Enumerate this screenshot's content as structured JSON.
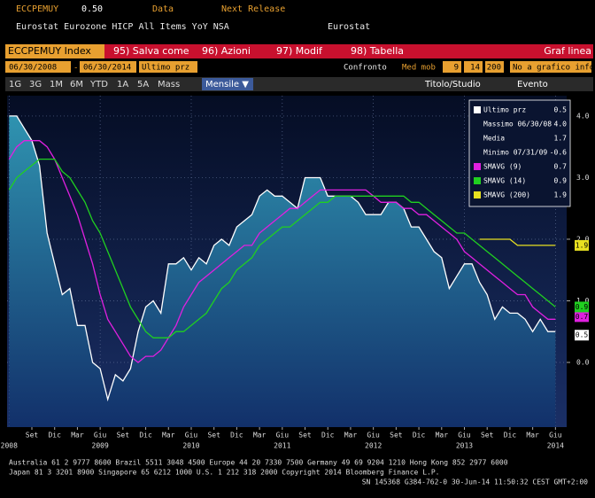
{
  "header": {
    "ticker": "ECCPEMUY",
    "last": "0.50",
    "field": "Data",
    "release": "Next Release",
    "description": "Eurostat Eurozone HICP All Items YoY NSA",
    "source": "Eurostat"
  },
  "menu": {
    "security": "ECCPEMUY Index",
    "items": [
      "95) Salva come",
      "96) Azioni",
      "97) Modif",
      "98) Tabella"
    ],
    "chart_kind": "Graf linea"
  },
  "controls": {
    "start": "06/30/2008",
    "dash": "-",
    "end": "06/30/2014",
    "field": "Ultimo prz",
    "compare": "Confronto",
    "moving": "Med mob",
    "periods": [
      "9",
      "14",
      "200"
    ],
    "info": "No a grafico info"
  },
  "ranges": {
    "buttons": [
      "1G",
      "3G",
      "1M",
      "6M",
      "YTD",
      "1A",
      "5A",
      "Mass"
    ],
    "frequency": "Mensile ▼",
    "study": "Titolo/Studio",
    "event": "Evento"
  },
  "stats": [
    {
      "label": "Massimo 06/30/08",
      "value": "4.0"
    },
    {
      "label": "Media",
      "value": "1.7"
    },
    {
      "label": "Minimo 07/31/09",
      "value": "-0.6"
    }
  ],
  "footer": [
    "Australia 61 2 9777 8600 Brazil 5511 3048 4500 Europe 44 20 7330 7500 Germany 49 69 9204 1210 Hong Kong 852 2977 6000",
    "Japan 81 3 3201 8900       Singapore 65 6212 1000       U.S. 1 212 318 2000       Copyright 2014 Bloomberg Finance L.P.",
    "SN 145368 G384-762-0 30-Jun-14 11:50:32 CEST GMT+2:00"
  ],
  "chart_data": {
    "type": "line",
    "grid": true,
    "x": [
      "2008-06",
      "2008-07",
      "2008-08",
      "2008-09",
      "2008-10",
      "2008-11",
      "2008-12",
      "2009-01",
      "2009-02",
      "2009-03",
      "2009-04",
      "2009-05",
      "2009-06",
      "2009-07",
      "2009-08",
      "2009-09",
      "2009-10",
      "2009-11",
      "2009-12",
      "2010-01",
      "2010-02",
      "2010-03",
      "2010-04",
      "2010-05",
      "2010-06",
      "2010-07",
      "2010-08",
      "2010-09",
      "2010-10",
      "2010-11",
      "2010-12",
      "2011-01",
      "2011-02",
      "2011-03",
      "2011-04",
      "2011-05",
      "2011-06",
      "2011-07",
      "2011-08",
      "2011-09",
      "2011-10",
      "2011-11",
      "2011-12",
      "2012-01",
      "2012-02",
      "2012-03",
      "2012-04",
      "2012-05",
      "2012-06",
      "2012-07",
      "2012-08",
      "2012-09",
      "2012-10",
      "2012-11",
      "2012-12",
      "2013-01",
      "2013-02",
      "2013-03",
      "2013-04",
      "2013-05",
      "2013-06",
      "2013-07",
      "2013-08",
      "2013-09",
      "2013-10",
      "2013-11",
      "2013-12",
      "2014-01",
      "2014-02",
      "2014-03",
      "2014-04",
      "2014-05",
      "2014-06"
    ],
    "series": [
      {
        "name": "Ultimo prz",
        "color": "#ffffff",
        "area": true,
        "values": [
          4.0,
          4.0,
          3.8,
          3.6,
          3.2,
          2.1,
          1.6,
          1.1,
          1.2,
          0.6,
          0.6,
          0.0,
          -0.1,
          -0.6,
          -0.2,
          -0.3,
          -0.1,
          0.5,
          0.9,
          1.0,
          0.8,
          1.6,
          1.6,
          1.7,
          1.5,
          1.7,
          1.6,
          1.9,
          2.0,
          1.9,
          2.2,
          2.3,
          2.4,
          2.7,
          2.8,
          2.7,
          2.7,
          2.6,
          2.5,
          3.0,
          3.0,
          3.0,
          2.7,
          2.7,
          2.7,
          2.7,
          2.6,
          2.4,
          2.4,
          2.4,
          2.6,
          2.6,
          2.5,
          2.2,
          2.2,
          2.0,
          1.8,
          1.7,
          1.2,
          1.4,
          1.6,
          1.6,
          1.3,
          1.1,
          0.7,
          0.9,
          0.8,
          0.8,
          0.7,
          0.5,
          0.7,
          0.5,
          0.5
        ]
      },
      {
        "name": "SMAVG (9)",
        "color": "#e020e0",
        "values": [
          3.3,
          3.5,
          3.6,
          3.6,
          3.6,
          3.5,
          3.3,
          3.0,
          2.7,
          2.4,
          2.0,
          1.6,
          1.1,
          0.7,
          0.5,
          0.3,
          0.1,
          0.0,
          0.1,
          0.1,
          0.2,
          0.4,
          0.6,
          0.9,
          1.1,
          1.3,
          1.4,
          1.5,
          1.6,
          1.7,
          1.8,
          1.9,
          1.9,
          2.1,
          2.2,
          2.3,
          2.4,
          2.5,
          2.5,
          2.6,
          2.7,
          2.8,
          2.8,
          2.8,
          2.8,
          2.8,
          2.8,
          2.8,
          2.7,
          2.6,
          2.6,
          2.6,
          2.5,
          2.5,
          2.4,
          2.4,
          2.3,
          2.2,
          2.1,
          2.0,
          1.8,
          1.7,
          1.6,
          1.5,
          1.4,
          1.3,
          1.2,
          1.1,
          1.1,
          0.9,
          0.8,
          0.7,
          0.7
        ]
      },
      {
        "name": "SMAVG (14)",
        "color": "#20d020",
        "values": [
          2.8,
          3.0,
          3.1,
          3.2,
          3.3,
          3.3,
          3.3,
          3.1,
          3.0,
          2.8,
          2.6,
          2.3,
          2.1,
          1.8,
          1.5,
          1.2,
          0.9,
          0.7,
          0.5,
          0.4,
          0.4,
          0.4,
          0.5,
          0.5,
          0.6,
          0.7,
          0.8,
          1.0,
          1.2,
          1.3,
          1.5,
          1.6,
          1.7,
          1.9,
          2.0,
          2.1,
          2.2,
          2.2,
          2.3,
          2.4,
          2.5,
          2.6,
          2.6,
          2.7,
          2.7,
          2.7,
          2.7,
          2.7,
          2.7,
          2.7,
          2.7,
          2.7,
          2.7,
          2.6,
          2.6,
          2.5,
          2.4,
          2.3,
          2.2,
          2.1,
          2.1,
          2.0,
          1.9,
          1.8,
          1.7,
          1.6,
          1.5,
          1.4,
          1.3,
          1.2,
          1.1,
          1.0,
          0.9
        ]
      },
      {
        "name": "SMAVG (200)",
        "color": "#e8e020",
        "values": [
          null,
          null,
          null,
          null,
          null,
          null,
          null,
          null,
          null,
          null,
          null,
          null,
          null,
          null,
          null,
          null,
          null,
          null,
          null,
          null,
          null,
          null,
          null,
          null,
          null,
          null,
          null,
          null,
          null,
          null,
          null,
          null,
          null,
          null,
          null,
          null,
          null,
          null,
          null,
          null,
          null,
          null,
          null,
          null,
          null,
          null,
          null,
          null,
          null,
          null,
          null,
          null,
          null,
          null,
          null,
          null,
          null,
          null,
          null,
          null,
          null,
          null,
          2.0,
          2.0,
          2.0,
          2.0,
          2.0,
          1.9,
          1.9,
          1.9,
          1.9,
          1.9,
          1.9
        ]
      }
    ],
    "ylim": [
      -1.05,
      4.33
    ],
    "yticks": [
      {
        "value": 0,
        "label": "0.0"
      },
      {
        "value": 1,
        "label": "1.0"
      },
      {
        "value": 2,
        "label": "2.0"
      },
      {
        "value": 3,
        "label": "3.0"
      },
      {
        "value": 4,
        "label": "4.0"
      }
    ],
    "xticks": [
      {
        "value": "2008-09",
        "label": "Set"
      },
      {
        "value": "2008-12",
        "label": "Dic"
      },
      {
        "value": "2009-03",
        "label": "Mar"
      },
      {
        "value": "2009-06",
        "label": "Giu"
      },
      {
        "value": "2009-09",
        "label": "Set"
      },
      {
        "value": "2009-12",
        "label": "Dic"
      },
      {
        "value": "2010-03",
        "label": "Mar"
      },
      {
        "value": "2010-06",
        "label": "Giu"
      },
      {
        "value": "2010-09",
        "label": "Set"
      },
      {
        "value": "2010-12",
        "label": "Dic"
      },
      {
        "value": "2011-03",
        "label": "Mar"
      },
      {
        "value": "2011-06",
        "label": "Giu"
      },
      {
        "value": "2011-09",
        "label": "Set"
      },
      {
        "value": "2011-12",
        "label": "Dic"
      },
      {
        "value": "2012-03",
        "label": "Mar"
      },
      {
        "value": "2012-06",
        "label": "Giu"
      },
      {
        "value": "2012-09",
        "label": "Set"
      },
      {
        "value": "2012-12",
        "label": "Dic"
      },
      {
        "value": "2013-03",
        "label": "Mar"
      },
      {
        "value": "2013-06",
        "label": "Giu"
      },
      {
        "value": "2013-09",
        "label": "Set"
      },
      {
        "value": "2013-12",
        "label": "Dic"
      },
      {
        "value": "2014-03",
        "label": "Mar"
      },
      {
        "value": "2014-06",
        "label": "Giu"
      }
    ],
    "year_ticks": [
      {
        "value": "2008-06",
        "label": "2008"
      },
      {
        "value": "2009-06",
        "label": "2009"
      },
      {
        "value": "2010-06",
        "label": "2010"
      },
      {
        "value": "2011-06",
        "label": "2011"
      },
      {
        "value": "2012-06",
        "label": "2012"
      },
      {
        "value": "2013-06",
        "label": "2013"
      },
      {
        "value": "2014-06",
        "label": "2014"
      }
    ]
  }
}
